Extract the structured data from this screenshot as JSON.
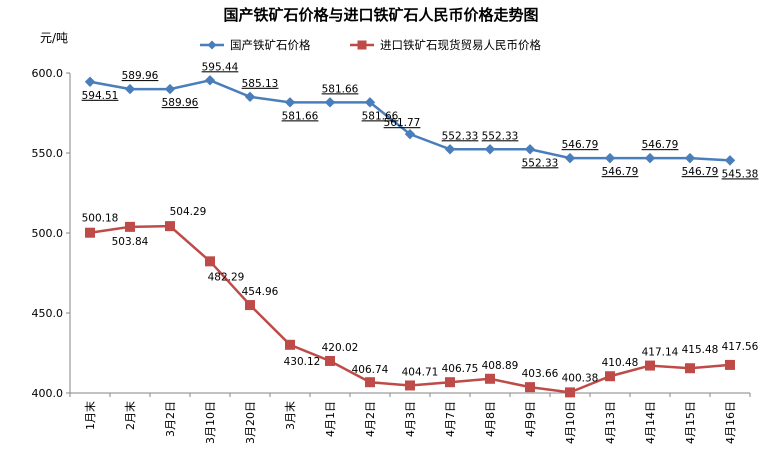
{
  "chart_data": {
    "type": "line",
    "title": "国产铁矿石价格与进口铁矿石人民币价格走势图",
    "ylabel": "元/吨",
    "xlabel": "",
    "ylim": [
      400,
      600
    ],
    "yticks": [
      "400.0",
      "450.0",
      "500.0",
      "550.0",
      "600.0"
    ],
    "grid": false,
    "legend": "top-center",
    "categories": [
      "1月末",
      "2月末",
      "3月2日",
      "3月10日",
      "3月20日",
      "3月末",
      "4月1日",
      "4月2日",
      "4月3日",
      "4月7日",
      "4月8日",
      "4月9日",
      "4月10日",
      "4月13日",
      "4月14日",
      "4月15日",
      "4月16日"
    ],
    "series": [
      {
        "name": "国产铁矿石价格",
        "color": "#4a7ebb",
        "marker": "diamond",
        "values": [
          594.51,
          589.96,
          589.96,
          595.44,
          585.13,
          581.66,
          581.66,
          581.66,
          561.77,
          552.33,
          552.33,
          552.33,
          546.79,
          546.79,
          546.79,
          546.79,
          545.38
        ],
        "labels": [
          "594.51",
          "589.96",
          "589.96",
          "595.44",
          "585.13",
          "581.66",
          "581.66",
          "581.66",
          "561.77",
          "552.33",
          "552.33",
          "552.33",
          "546.79",
          "546.79",
          "546.79",
          "546.79",
          "545.38"
        ]
      },
      {
        "name": "进口铁矿石现货贸易人民币价格",
        "color": "#be4b48",
        "marker": "square",
        "values": [
          500.18,
          503.84,
          504.29,
          482.29,
          454.96,
          430.12,
          420.02,
          406.74,
          404.71,
          406.75,
          408.89,
          403.66,
          400.38,
          410.48,
          417.14,
          415.48,
          417.56
        ],
        "labels": [
          "500.18",
          "503.84",
          "504.29",
          "482.29",
          "454.96",
          "430.12",
          "420.02",
          "406.74",
          "404.71",
          "406.75",
          "408.89",
          "403.66",
          "400.38",
          "410.48",
          "417.14",
          "415.48",
          "417.56"
        ]
      }
    ]
  }
}
